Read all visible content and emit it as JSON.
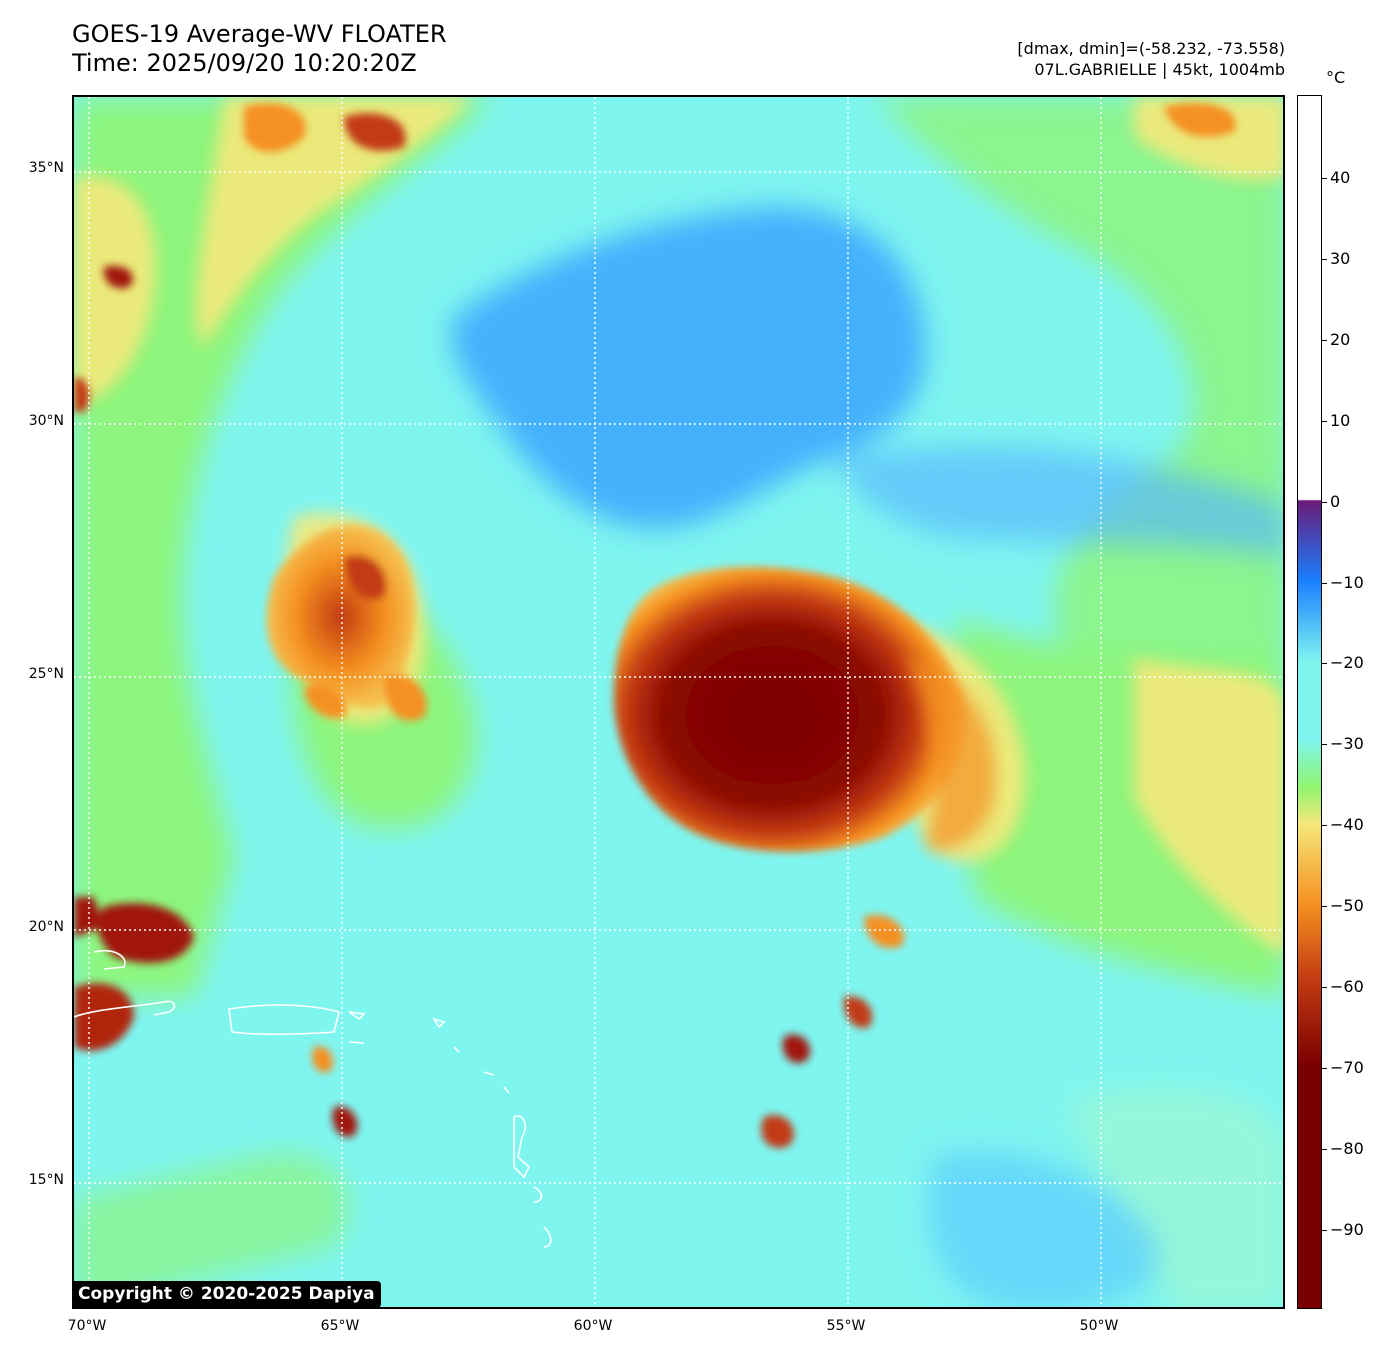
{
  "header": {
    "title_line1": "GOES-19 Average-WV FLOATER",
    "title_line2": "Time: 2025/09/20 10:20:20Z",
    "range_text": "[dmax, dmin]=(-58.232, -73.558)",
    "storm_text": "07L.GABRIELLE | 45kt, 1004mb"
  },
  "map": {
    "lat_labels": [
      "35°N",
      "30°N",
      "25°N",
      "20°N",
      "15°N"
    ],
    "lon_labels": [
      "70°W",
      "65°W",
      "60°W",
      "55°W",
      "50°W"
    ],
    "copyright": "Copyright © 2020-2025 Dapiya"
  },
  "colorbar": {
    "unit": "°C",
    "ticks": [
      "40",
      "30",
      "20",
      "10",
      "0",
      "−10",
      "−20",
      "−30",
      "−40",
      "−50",
      "−60",
      "−70",
      "−80",
      "−90"
    ],
    "colors": {
      "white": "#ffffff",
      "purple": "#6a1a78",
      "blue": "#1a7fff",
      "cyan": "#7ff5f0",
      "green": "#8ff570",
      "yellow": "#f5e87a",
      "orange": "#f59020",
      "red": "#c23a12",
      "darkred": "#7a0000"
    }
  }
}
